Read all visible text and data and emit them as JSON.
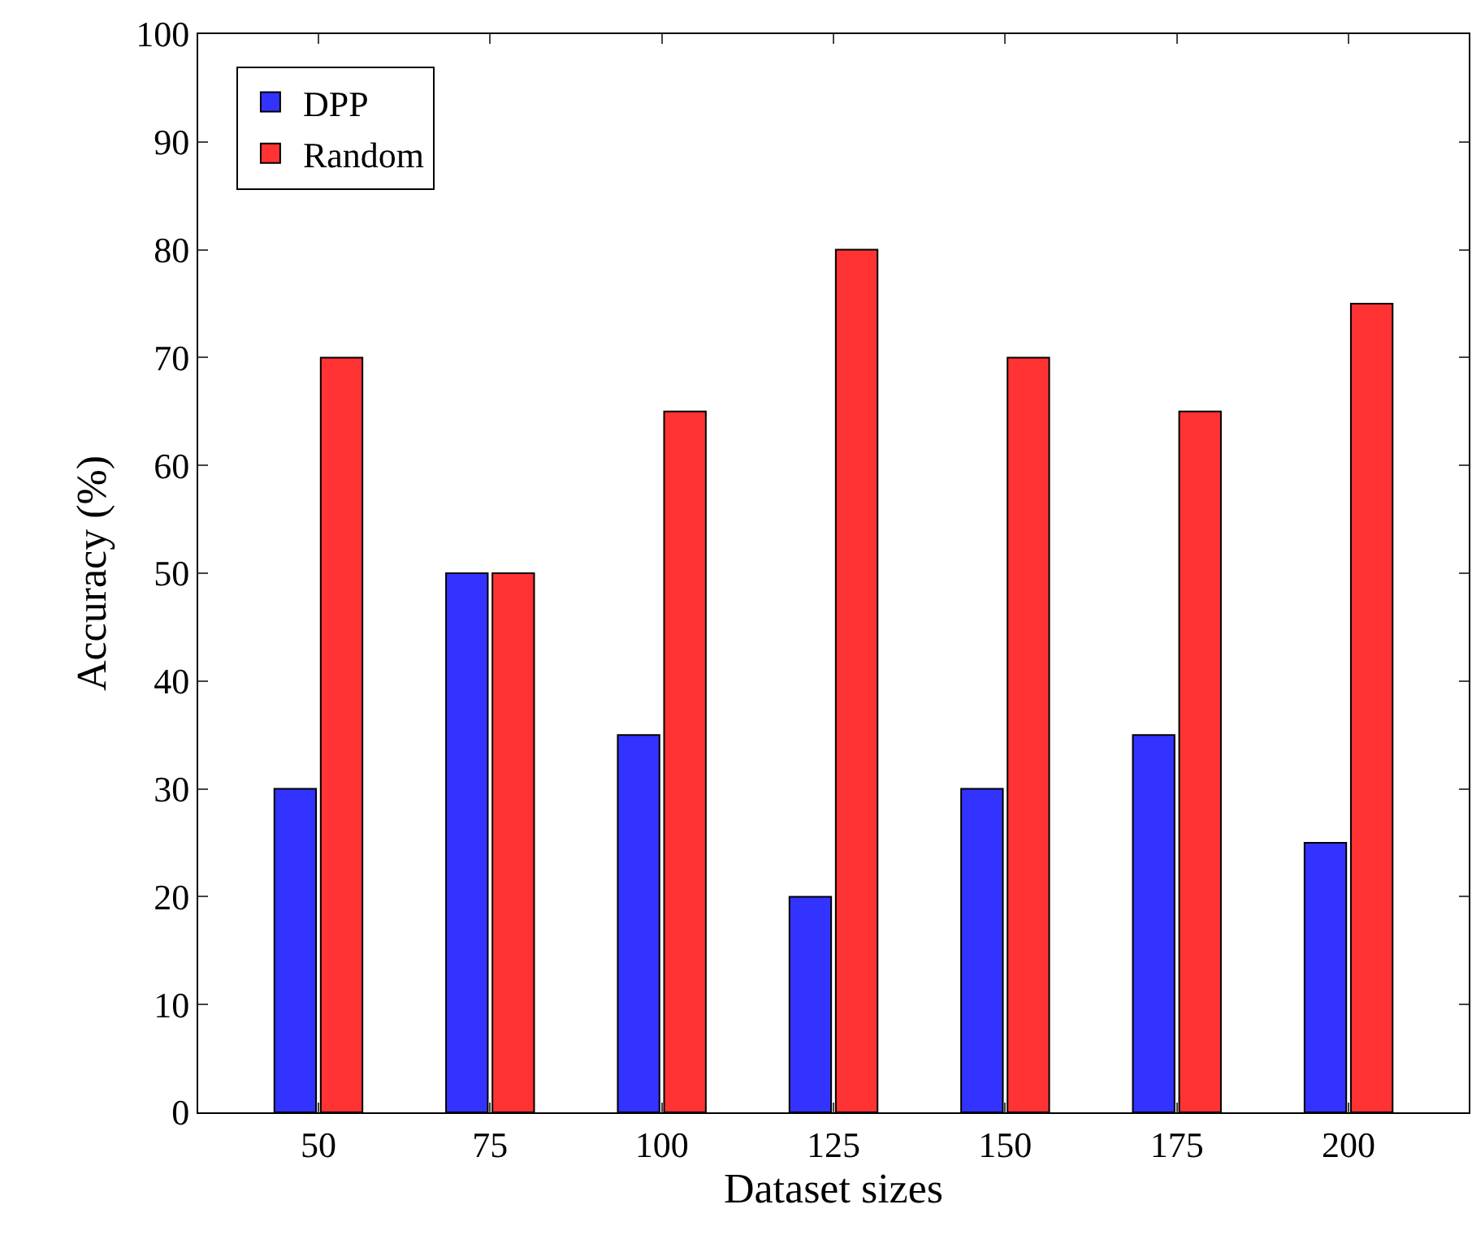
{
  "chart_data": {
    "type": "bar",
    "xlabel": "Dataset sizes",
    "ylabel": "Accuracy (%)",
    "categories": [
      "50",
      "75",
      "100",
      "125",
      "150",
      "175",
      "200"
    ],
    "series": [
      {
        "name": "DPP",
        "color": "#3333ff",
        "values": [
          30,
          50,
          35,
          20,
          30,
          35,
          25
        ]
      },
      {
        "name": "Random",
        "color": "#ff3333",
        "values": [
          70,
          50,
          65,
          80,
          70,
          65,
          75
        ]
      }
    ],
    "ylim": [
      0,
      100
    ],
    "yticks": [
      0,
      10,
      20,
      30,
      40,
      50,
      60,
      70,
      80,
      90,
      100
    ],
    "legend": "top left"
  }
}
